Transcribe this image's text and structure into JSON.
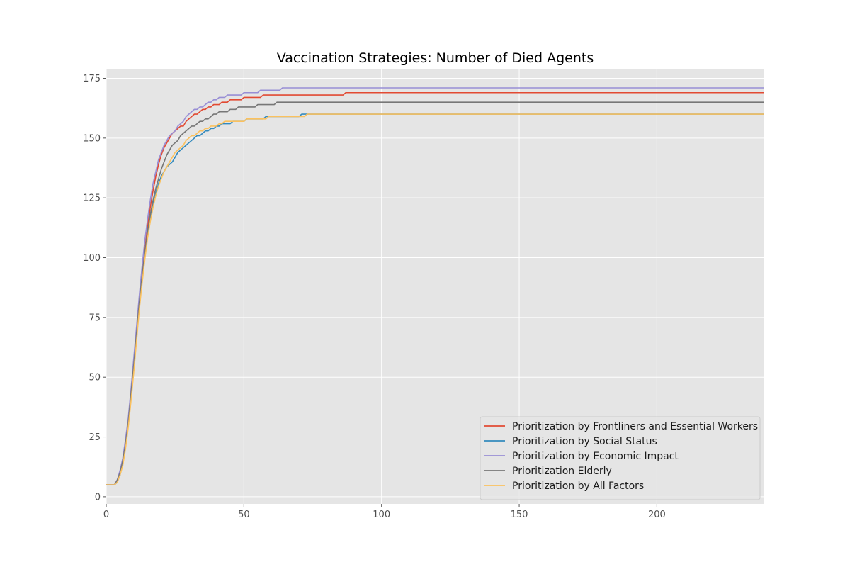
{
  "chart_data": {
    "type": "line",
    "title": "Vaccination Strategies: Number of Died Agents",
    "xlabel": "",
    "ylabel": "",
    "xlim": [
      0,
      239
    ],
    "ylim": [
      -3,
      179
    ],
    "x_ticks": [
      0,
      50,
      100,
      150,
      200
    ],
    "y_ticks": [
      0,
      25,
      50,
      75,
      100,
      125,
      150,
      175
    ],
    "grid": true,
    "legend_position": "lower-right",
    "series": [
      {
        "name": "Prioritization by Frontliners and Essential Workers",
        "color": "#E24A33",
        "points": [
          [
            0,
            5
          ],
          [
            3,
            5
          ],
          [
            4,
            7
          ],
          [
            5,
            10
          ],
          [
            6,
            15
          ],
          [
            7,
            22
          ],
          [
            8,
            31
          ],
          [
            9,
            42
          ],
          [
            10,
            54
          ],
          [
            11,
            67
          ],
          [
            12,
            80
          ],
          [
            13,
            92
          ],
          [
            14,
            103
          ],
          [
            15,
            113
          ],
          [
            16,
            121
          ],
          [
            17,
            128
          ],
          [
            18,
            134
          ],
          [
            19,
            139
          ],
          [
            20,
            143
          ],
          [
            21,
            146
          ],
          [
            22,
            148
          ],
          [
            23,
            150
          ],
          [
            24,
            152
          ],
          [
            25,
            153
          ],
          [
            26,
            154
          ],
          [
            27,
            155
          ],
          [
            28,
            155
          ],
          [
            29,
            157
          ],
          [
            30,
            158
          ],
          [
            31,
            159
          ],
          [
            32,
            160
          ],
          [
            33,
            160
          ],
          [
            34,
            161
          ],
          [
            35,
            162
          ],
          [
            36,
            162
          ],
          [
            37,
            163
          ],
          [
            38,
            163
          ],
          [
            39,
            164
          ],
          [
            40,
            164
          ],
          [
            41,
            164
          ],
          [
            42,
            165
          ],
          [
            43,
            165
          ],
          [
            44,
            165
          ],
          [
            45,
            166
          ],
          [
            46,
            166
          ],
          [
            47,
            166
          ],
          [
            48,
            166
          ],
          [
            49,
            166
          ],
          [
            50,
            167
          ],
          [
            56,
            167
          ],
          [
            57,
            168
          ],
          [
            86,
            168
          ],
          [
            87,
            169
          ],
          [
            239,
            169
          ]
        ]
      },
      {
        "name": "Prioritization by Social Status",
        "color": "#348ABD",
        "points": [
          [
            0,
            5
          ],
          [
            3,
            5
          ],
          [
            4,
            6
          ],
          [
            5,
            9
          ],
          [
            6,
            14
          ],
          [
            7,
            21
          ],
          [
            8,
            30
          ],
          [
            9,
            41
          ],
          [
            10,
            53
          ],
          [
            11,
            66
          ],
          [
            12,
            79
          ],
          [
            13,
            90
          ],
          [
            14,
            100
          ],
          [
            15,
            109
          ],
          [
            16,
            116
          ],
          [
            17,
            122
          ],
          [
            18,
            127
          ],
          [
            19,
            131
          ],
          [
            20,
            134
          ],
          [
            21,
            136
          ],
          [
            22,
            138
          ],
          [
            23,
            139
          ],
          [
            24,
            140
          ],
          [
            25,
            142
          ],
          [
            26,
            144
          ],
          [
            27,
            145
          ],
          [
            28,
            146
          ],
          [
            29,
            147
          ],
          [
            30,
            148
          ],
          [
            31,
            149
          ],
          [
            32,
            150
          ],
          [
            33,
            151
          ],
          [
            34,
            151
          ],
          [
            35,
            152
          ],
          [
            36,
            153
          ],
          [
            37,
            153
          ],
          [
            38,
            154
          ],
          [
            39,
            154
          ],
          [
            40,
            155
          ],
          [
            41,
            155
          ],
          [
            42,
            156
          ],
          [
            44,
            156
          ],
          [
            45,
            156
          ],
          [
            46,
            157
          ],
          [
            50,
            157
          ],
          [
            51,
            158
          ],
          [
            57,
            158
          ],
          [
            58,
            159
          ],
          [
            70,
            159
          ],
          [
            71,
            160
          ],
          [
            239,
            160
          ]
        ]
      },
      {
        "name": "Prioritization by Economic Impact",
        "color": "#988ED5",
        "points": [
          [
            0,
            5
          ],
          [
            3,
            5
          ],
          [
            4,
            7
          ],
          [
            5,
            11
          ],
          [
            6,
            16
          ],
          [
            7,
            24
          ],
          [
            8,
            33
          ],
          [
            9,
            45
          ],
          [
            10,
            58
          ],
          [
            11,
            71
          ],
          [
            12,
            84
          ],
          [
            13,
            96
          ],
          [
            14,
            107
          ],
          [
            15,
            116
          ],
          [
            16,
            124
          ],
          [
            17,
            131
          ],
          [
            18,
            136
          ],
          [
            19,
            141
          ],
          [
            20,
            144
          ],
          [
            21,
            147
          ],
          [
            22,
            149
          ],
          [
            23,
            151
          ],
          [
            24,
            152
          ],
          [
            25,
            153
          ],
          [
            26,
            155
          ],
          [
            27,
            156
          ],
          [
            28,
            157
          ],
          [
            29,
            159
          ],
          [
            30,
            160
          ],
          [
            31,
            161
          ],
          [
            32,
            162
          ],
          [
            33,
            162
          ],
          [
            34,
            163
          ],
          [
            35,
            163
          ],
          [
            36,
            164
          ],
          [
            37,
            165
          ],
          [
            38,
            165
          ],
          [
            39,
            166
          ],
          [
            40,
            166
          ],
          [
            41,
            167
          ],
          [
            42,
            167
          ],
          [
            43,
            167
          ],
          [
            44,
            168
          ],
          [
            49,
            168
          ],
          [
            50,
            169
          ],
          [
            55,
            169
          ],
          [
            56,
            170
          ],
          [
            63,
            170
          ],
          [
            64,
            171
          ],
          [
            239,
            171
          ]
        ]
      },
      {
        "name": "Prioritization Elderly",
        "color": "#777777",
        "points": [
          [
            0,
            5
          ],
          [
            3,
            5
          ],
          [
            4,
            7
          ],
          [
            5,
            10
          ],
          [
            6,
            15
          ],
          [
            7,
            22
          ],
          [
            8,
            31
          ],
          [
            9,
            43
          ],
          [
            10,
            55
          ],
          [
            11,
            68
          ],
          [
            12,
            81
          ],
          [
            13,
            92
          ],
          [
            14,
            102
          ],
          [
            15,
            111
          ],
          [
            16,
            118
          ],
          [
            17,
            124
          ],
          [
            18,
            129
          ],
          [
            19,
            133
          ],
          [
            20,
            137
          ],
          [
            21,
            140
          ],
          [
            22,
            143
          ],
          [
            23,
            145
          ],
          [
            24,
            147
          ],
          [
            25,
            148
          ],
          [
            26,
            149
          ],
          [
            27,
            151
          ],
          [
            28,
            152
          ],
          [
            29,
            153
          ],
          [
            30,
            154
          ],
          [
            31,
            155
          ],
          [
            32,
            155
          ],
          [
            33,
            156
          ],
          [
            34,
            157
          ],
          [
            35,
            157
          ],
          [
            36,
            158
          ],
          [
            37,
            158
          ],
          [
            38,
            159
          ],
          [
            39,
            160
          ],
          [
            40,
            160
          ],
          [
            41,
            161
          ],
          [
            44,
            161
          ],
          [
            45,
            162
          ],
          [
            47,
            162
          ],
          [
            48,
            163
          ],
          [
            54,
            163
          ],
          [
            55,
            164
          ],
          [
            61,
            164
          ],
          [
            62,
            165
          ],
          [
            239,
            165
          ]
        ]
      },
      {
        "name": "Prioritization by All Factors",
        "color": "#FBC15E",
        "points": [
          [
            0,
            5
          ],
          [
            3,
            5
          ],
          [
            4,
            6
          ],
          [
            5,
            9
          ],
          [
            6,
            13
          ],
          [
            7,
            20
          ],
          [
            8,
            29
          ],
          [
            9,
            40
          ],
          [
            10,
            52
          ],
          [
            11,
            65
          ],
          [
            12,
            78
          ],
          [
            13,
            89
          ],
          [
            14,
            99
          ],
          [
            15,
            108
          ],
          [
            16,
            115
          ],
          [
            17,
            121
          ],
          [
            18,
            126
          ],
          [
            19,
            130
          ],
          [
            20,
            133
          ],
          [
            21,
            136
          ],
          [
            22,
            138
          ],
          [
            23,
            140
          ],
          [
            24,
            142
          ],
          [
            25,
            144
          ],
          [
            26,
            145
          ],
          [
            27,
            146
          ],
          [
            28,
            147
          ],
          [
            29,
            149
          ],
          [
            30,
            150
          ],
          [
            31,
            151
          ],
          [
            32,
            151
          ],
          [
            33,
            152
          ],
          [
            34,
            153
          ],
          [
            35,
            153
          ],
          [
            36,
            154
          ],
          [
            37,
            154
          ],
          [
            38,
            155
          ],
          [
            39,
            155
          ],
          [
            40,
            155
          ],
          [
            41,
            156
          ],
          [
            42,
            156
          ],
          [
            43,
            157
          ],
          [
            50,
            157
          ],
          [
            51,
            158
          ],
          [
            58,
            158
          ],
          [
            59,
            159
          ],
          [
            72,
            159
          ],
          [
            73,
            160
          ],
          [
            239,
            160
          ]
        ]
      }
    ]
  }
}
